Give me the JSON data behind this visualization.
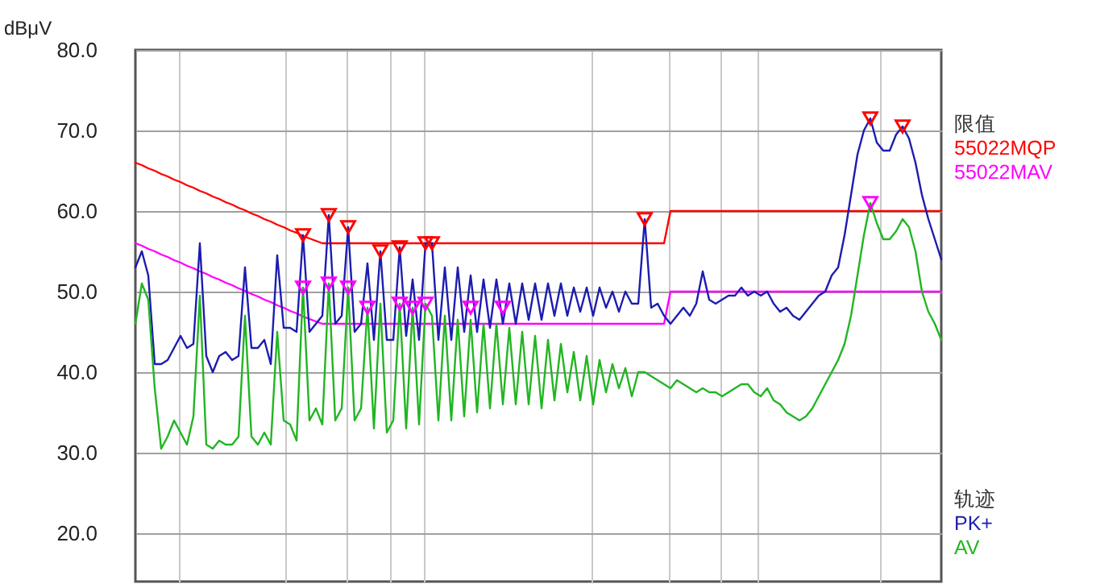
{
  "chart_data": {
    "type": "line",
    "ylabel": "dBμV",
    "categories": [
      null,
      null,
      null,
      null,
      null,
      null,
      null,
      null,
      null,
      null,
      null,
      null,
      null,
      null,
      null,
      null,
      null,
      null,
      null,
      null,
      null,
      null,
      null,
      null,
      null,
      null,
      null,
      null,
      null,
      null,
      null,
      null,
      null,
      null,
      null,
      null,
      null,
      null,
      null,
      null,
      null,
      null,
      null,
      null,
      null,
      null,
      null,
      null,
      null,
      null,
      null,
      null,
      null,
      null,
      null,
      null,
      null,
      null,
      null,
      null,
      null,
      null,
      null,
      null,
      null,
      null,
      null,
      null,
      null,
      null,
      null,
      null,
      null,
      null,
      null,
      null,
      null,
      null,
      null,
      null,
      null,
      null,
      null,
      null,
      null,
      null,
      null,
      null,
      null,
      null,
      null,
      null,
      null,
      null,
      null,
      null,
      null,
      null,
      null,
      null,
      null,
      null,
      null,
      null,
      null,
      null,
      null,
      null,
      null,
      null,
      null,
      null,
      null,
      null,
      null,
      null,
      null,
      null,
      null,
      null,
      null,
      null,
      null,
      null,
      null,
      null
    ],
    "ylim": [
      14,
      80
    ],
    "yticks": [
      {
        "value": 20,
        "label": "20.0"
      },
      {
        "value": 30,
        "label": "30.0"
      },
      {
        "value": 40,
        "label": "40.0"
      },
      {
        "value": 50,
        "label": "50.0"
      },
      {
        "value": 60,
        "label": "60.0"
      },
      {
        "value": 70,
        "label": "70.0"
      },
      {
        "value": 80,
        "label": "80.0"
      }
    ],
    "grid": true,
    "legend": "right",
    "annotations": [
      "限值",
      "轨迹"
    ],
    "series": [
      {
        "name": "55022MQP",
        "color": "#ff0000",
        "values": [
          66,
          65.7,
          65.3,
          65,
          64.6,
          64.3,
          63.9,
          63.6,
          63.2,
          62.9,
          62.5,
          62.2,
          61.8,
          61.5,
          61.1,
          60.8,
          60.4,
          60.1,
          59.7,
          59.4,
          59,
          58.7,
          58.3,
          58,
          57.6,
          57.3,
          56.9,
          56.6,
          56.3,
          56,
          56,
          56,
          56,
          56,
          56,
          56,
          56,
          56,
          56,
          56,
          56,
          56,
          56,
          56,
          56,
          56,
          56,
          56,
          56,
          56,
          56,
          56,
          56,
          56,
          56,
          56,
          56,
          56,
          56,
          56,
          56,
          56,
          56,
          56,
          56,
          56,
          56,
          56,
          56,
          56,
          56,
          56,
          56,
          56,
          56,
          56,
          56,
          56,
          56,
          56,
          56,
          56,
          56,
          60,
          60,
          60,
          60,
          60,
          60,
          60,
          60,
          60,
          60,
          60,
          60,
          60,
          60,
          60,
          60,
          60,
          60,
          60,
          60,
          60,
          60,
          60,
          60,
          60,
          60,
          60,
          60,
          60,
          60,
          60,
          60,
          60,
          60,
          60,
          60,
          60,
          60,
          60,
          60,
          60,
          60,
          60
        ]
      },
      {
        "name": "55022MAV",
        "color": "#ff00ff",
        "values": [
          56,
          55.7,
          55.3,
          55,
          54.6,
          54.3,
          53.9,
          53.6,
          53.2,
          52.9,
          52.5,
          52.2,
          51.8,
          51.5,
          51.1,
          50.8,
          50.4,
          50.1,
          49.7,
          49.4,
          49,
          48.7,
          48.3,
          48,
          47.6,
          47.3,
          46.9,
          46.6,
          46.3,
          46,
          46,
          46,
          46,
          46,
          46,
          46,
          46,
          46,
          46,
          46,
          46,
          46,
          46,
          46,
          46,
          46,
          46,
          46,
          46,
          46,
          46,
          46,
          46,
          46,
          46,
          46,
          46,
          46,
          46,
          46,
          46,
          46,
          46,
          46,
          46,
          46,
          46,
          46,
          46,
          46,
          46,
          46,
          46,
          46,
          46,
          46,
          46,
          46,
          46,
          46,
          46,
          46,
          46,
          50,
          50,
          50,
          50,
          50,
          50,
          50,
          50,
          50,
          50,
          50,
          50,
          50,
          50,
          50,
          50,
          50,
          50,
          50,
          50,
          50,
          50,
          50,
          50,
          50,
          50,
          50,
          50,
          50,
          50,
          50,
          50,
          50,
          50,
          50,
          50,
          50,
          50,
          50,
          50,
          50,
          50,
          50
        ]
      },
      {
        "name": "PK+",
        "color": "#1c1cb0",
        "values": [
          53,
          55,
          52,
          41,
          41,
          41.5,
          43,
          44.5,
          43,
          43.5,
          56,
          42,
          40,
          42,
          42.5,
          41.5,
          42,
          53,
          43,
          43,
          44,
          41,
          54.5,
          45.5,
          45.5,
          45,
          57,
          45,
          46,
          47,
          59.5,
          46,
          47,
          58,
          45,
          46,
          53.5,
          44,
          55,
          44,
          44,
          55.5,
          44.5,
          51.5,
          44,
          56,
          56,
          44,
          53,
          44,
          53,
          45,
          52,
          45,
          51.5,
          45.5,
          51.5,
          46,
          51,
          46,
          51,
          46.5,
          51,
          46.5,
          51,
          47,
          51,
          47,
          50.5,
          47.5,
          50.5,
          47,
          50.5,
          48,
          50,
          47.5,
          50,
          48.5,
          48.5,
          59,
          48,
          48.5,
          47,
          46,
          47,
          48,
          47,
          48.5,
          52.5,
          49,
          48.5,
          49,
          49.5,
          49.5,
          50.5,
          49.5,
          50,
          49.5,
          50,
          48.5,
          47.5,
          48,
          47,
          46.5,
          47.5,
          48.5,
          49.5,
          50,
          52,
          53,
          57,
          62,
          67,
          70,
          71.5,
          68.5,
          67.5,
          67.5,
          69.5,
          70.5,
          69,
          66,
          62,
          59,
          56.5,
          54
        ]
      },
      {
        "name": "AV",
        "color": "#22b522",
        "values": [
          46,
          51,
          49,
          38,
          30.5,
          32,
          34,
          32.5,
          31,
          34.5,
          49.5,
          31,
          30.5,
          31.5,
          31,
          31,
          32,
          47,
          32,
          31,
          32.5,
          31,
          45,
          34,
          33.5,
          31.5,
          50.5,
          34,
          35.5,
          33.5,
          51,
          34,
          35.5,
          50.5,
          34,
          35.5,
          48,
          33,
          48.5,
          32.5,
          34,
          48.5,
          33,
          48,
          33.5,
          48.5,
          47,
          34,
          47,
          34,
          46.5,
          34.5,
          46.5,
          35,
          46,
          35.5,
          46,
          36,
          45.5,
          36,
          45,
          36,
          44.5,
          35.5,
          44,
          36.5,
          43.5,
          37.5,
          42.5,
          36.5,
          42,
          36,
          41.5,
          37.5,
          41,
          38,
          40.5,
          37,
          40,
          40,
          39.5,
          39,
          38.5,
          38,
          39,
          38.5,
          38,
          37.5,
          38,
          37.5,
          37.5,
          37,
          37.5,
          38,
          38.5,
          38.5,
          37.5,
          37,
          38,
          36.5,
          36,
          35,
          34.5,
          34,
          34.5,
          35.5,
          37,
          38.5,
          40,
          41.5,
          43.5,
          47,
          52,
          57,
          61,
          58.5,
          56.5,
          56.5,
          57.5,
          59,
          58,
          55,
          50,
          47.5,
          46,
          44
        ]
      },
      {
        "type": "scatter",
        "marker": "triangle",
        "color": "#ff0000",
        "values": [
          null,
          null,
          null,
          null,
          null,
          null,
          null,
          null,
          null,
          null,
          null,
          null,
          null,
          null,
          null,
          null,
          null,
          null,
          null,
          null,
          null,
          null,
          null,
          null,
          null,
          null,
          57,
          null,
          null,
          null,
          59.5,
          null,
          null,
          58,
          null,
          null,
          null,
          null,
          55,
          null,
          null,
          55.5,
          null,
          null,
          null,
          56,
          56,
          null,
          null,
          null,
          null,
          null,
          null,
          null,
          null,
          null,
          null,
          null,
          null,
          null,
          null,
          null,
          null,
          null,
          null,
          null,
          null,
          null,
          null,
          null,
          null,
          null,
          null,
          null,
          null,
          null,
          null,
          null,
          null,
          59,
          null,
          null,
          null,
          null,
          null,
          null,
          null,
          null,
          null,
          null,
          null,
          null,
          null,
          null,
          null,
          null,
          null,
          null,
          null,
          null,
          null,
          null,
          null,
          null,
          null,
          null,
          null,
          null,
          null,
          null,
          null,
          null,
          null,
          null,
          71.5,
          null,
          null,
          null,
          null,
          70.5,
          null,
          null,
          null,
          null,
          null,
          null
        ]
      },
      {
        "type": "scatter",
        "marker": "triangle",
        "color": "#ff00ff",
        "values": [
          null,
          null,
          null,
          null,
          null,
          null,
          null,
          null,
          null,
          null,
          null,
          null,
          null,
          null,
          null,
          null,
          null,
          null,
          null,
          null,
          null,
          null,
          null,
          null,
          null,
          null,
          50.5,
          null,
          null,
          null,
          51,
          null,
          null,
          50.5,
          null,
          null,
          48,
          null,
          null,
          null,
          null,
          48.5,
          null,
          48,
          null,
          48.5,
          null,
          null,
          null,
          null,
          null,
          null,
          48,
          null,
          null,
          null,
          null,
          48,
          null,
          null,
          null,
          null,
          null,
          null,
          null,
          null,
          null,
          null,
          null,
          null,
          null,
          null,
          null,
          null,
          null,
          null,
          null,
          null,
          null,
          null,
          null,
          null,
          null,
          null,
          null,
          null,
          null,
          null,
          null,
          null,
          null,
          null,
          null,
          null,
          null,
          null,
          null,
          null,
          null,
          null,
          null,
          null,
          null,
          null,
          null,
          null,
          null,
          null,
          null,
          null,
          null,
          null,
          null,
          null,
          61,
          null,
          null,
          null,
          null,
          null,
          null,
          null,
          null,
          null,
          null,
          null
        ]
      }
    ]
  }
}
